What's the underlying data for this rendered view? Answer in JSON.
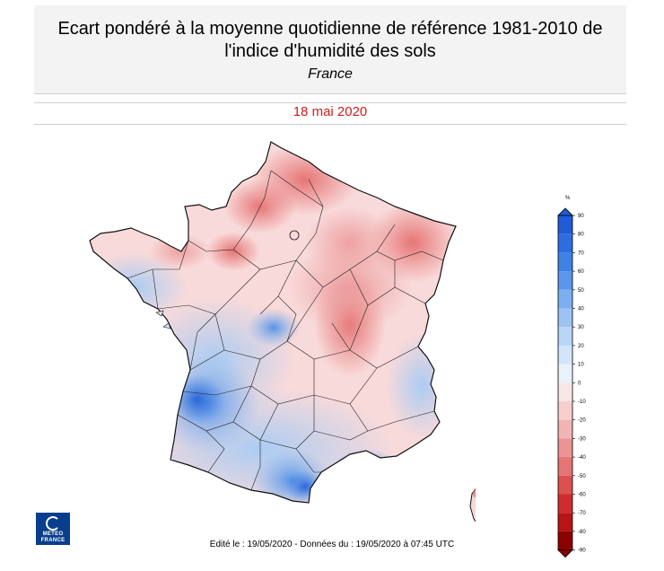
{
  "header": {
    "title": "Ecart pondéré à la moyenne quotidienne de référence 1981-2010 de l'indice d'humidité des sols",
    "region": "France"
  },
  "date": "18 mai 2020",
  "legend": {
    "unit": "%",
    "ticks": [
      90,
      80,
      70,
      60,
      50,
      40,
      30,
      20,
      10,
      0,
      -10,
      -20,
      -30,
      -40,
      -50,
      -60,
      -70,
      -80,
      -90
    ],
    "colors": {
      "90": "#1f5bd6",
      "80": "#2e6de0",
      "70": "#3f82e6",
      "60": "#5a97ec",
      "50": "#7caff0",
      "40": "#9cc4f3",
      "30": "#b9d6f6",
      "20": "#d3e6f9",
      "10": "#e9f2fb",
      "-10": "#fbe6e6",
      "-20": "#f7cfcf",
      "-30": "#f2b3b3",
      "-40": "#ec9494",
      "-50": "#e57474",
      "-60": "#dc5050",
      "-70": "#cf2d2d",
      "-80": "#b81414",
      "-90": "#8c0000"
    }
  },
  "footer": "Edité le : 19/05/2020 - Données du : 19/05/2020 à 07:45 UTC",
  "logo": {
    "line1": "METEO",
    "line2": "FRANCE"
  }
}
